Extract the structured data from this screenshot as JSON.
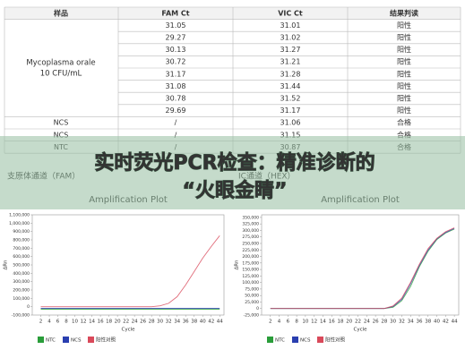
{
  "table": {
    "header": [
      "样品",
      "FAM Ct",
      "VIC Ct",
      "结果判读"
    ],
    "sample_group": [
      "Mycoplasma orale",
      "10 CFU/mL"
    ],
    "group_rows": [
      [
        "31.05",
        "31.01",
        "阳性"
      ],
      [
        "29.27",
        "31.02",
        "阳性"
      ],
      [
        "30.13",
        "31.27",
        "阳性"
      ],
      [
        "30.72",
        "31.21",
        "阳性"
      ],
      [
        "31.17",
        "31.28",
        "阳性"
      ],
      [
        "31.08",
        "31.44",
        "阳性"
      ],
      [
        "30.78",
        "31.52",
        "阳性"
      ],
      [
        "29.69",
        "31.17",
        "阳性"
      ]
    ],
    "control_rows": [
      [
        "NCS",
        "/",
        "31.06",
        "合格"
      ],
      [
        "NCS",
        "/",
        "31.15",
        "合格"
      ],
      [
        "NTC",
        "/",
        "30.87",
        "合格"
      ]
    ]
  },
  "banner": {
    "line1": "实时荧光PCR检查：精准诊断的",
    "line2": "“火眼金睛”"
  },
  "chart_data": [
    {
      "type": "line",
      "subtitle": "支原体通道（FAM）",
      "title": "Amplification Plot",
      "xlabel": "Cycle",
      "ylabel": "ΔRn",
      "x": [
        2,
        4,
        6,
        8,
        10,
        12,
        14,
        16,
        18,
        20,
        22,
        24,
        26,
        28,
        30,
        32,
        34,
        36,
        38,
        40,
        42,
        44
      ],
      "xlim": [
        0,
        45
      ],
      "xticks": [
        2,
        4,
        6,
        8,
        10,
        12,
        14,
        16,
        18,
        20,
        22,
        24,
        26,
        28,
        30,
        32,
        34,
        36,
        38,
        40,
        42,
        44
      ],
      "ylim": [
        -100000,
        1100000
      ],
      "yticks": [
        {
          "value": -100000,
          "label": "-100,000"
        },
        0,
        {
          "value": 100000,
          "label": "100,000"
        },
        {
          "value": 200000,
          "label": "200,000"
        },
        {
          "value": 300000,
          "label": "300,000"
        },
        {
          "value": 400000,
          "label": "400,000"
        },
        {
          "value": 500000,
          "label": "500,000"
        },
        {
          "value": 600000,
          "label": "600,000"
        },
        {
          "value": 700000,
          "label": "700,000"
        },
        {
          "value": 800000,
          "label": "800,000"
        },
        {
          "value": 900000,
          "label": "900,000"
        },
        {
          "value": 1000000,
          "label": "1,000,000"
        },
        {
          "value": 1100000,
          "label": "1,100,000"
        }
      ],
      "series": [
        {
          "name": "NTC",
          "color": "#2a9d3a",
          "values": [
            -30000,
            -30000,
            -30000,
            -30000,
            -30000,
            -30000,
            -30000,
            -30000,
            -30000,
            -30000,
            -30000,
            -30000,
            -30000,
            -30000,
            -30000,
            -30000,
            -30000,
            -30000,
            -30000,
            -30000,
            -30000,
            -30000
          ]
        },
        {
          "name": "NCS",
          "color": "#2a3fb0",
          "values": [
            -20000,
            -20000,
            -20000,
            -20000,
            -20000,
            -20000,
            -20000,
            -20000,
            -20000,
            -20000,
            -20000,
            -20000,
            -20000,
            -20000,
            -20000,
            -20000,
            -20000,
            -20000,
            -20000,
            -20000,
            -20000,
            -20000
          ]
        },
        {
          "name": "阳性对照",
          "color": "#d9495a",
          "values": [
            0,
            0,
            0,
            0,
            0,
            0,
            0,
            0,
            0,
            0,
            0,
            0,
            0,
            0,
            10000,
            40000,
            120000,
            260000,
            420000,
            580000,
            720000,
            850000
          ]
        }
      ]
    },
    {
      "type": "line",
      "subtitle": "IC通道（HEX）",
      "title": "Amplification Plot",
      "xlabel": "Cycle",
      "ylabel": "ΔRn",
      "x": [
        2,
        4,
        6,
        8,
        10,
        12,
        14,
        16,
        18,
        20,
        22,
        24,
        26,
        28,
        30,
        32,
        34,
        36,
        38,
        40,
        42,
        44
      ],
      "xlim": [
        0,
        45
      ],
      "xticks": [
        2,
        4,
        6,
        8,
        10,
        12,
        14,
        16,
        18,
        20,
        22,
        24,
        26,
        28,
        30,
        32,
        34,
        36,
        38,
        40,
        42,
        44
      ],
      "ylim": [
        -25000,
        360000
      ],
      "yticks": [
        {
          "value": -25000,
          "label": "-25,000"
        },
        0,
        {
          "value": 25000,
          "label": "25,000"
        },
        {
          "value": 50000,
          "label": "50,000"
        },
        {
          "value": 75000,
          "label": "75,000"
        },
        {
          "value": 100000,
          "label": "100,000"
        },
        {
          "value": 125000,
          "label": "125,000"
        },
        {
          "value": 150000,
          "label": "150,000"
        },
        {
          "value": 175000,
          "label": "175,000"
        },
        {
          "value": 200000,
          "label": "200,000"
        },
        {
          "value": 225000,
          "label": "225,000"
        },
        {
          "value": 250000,
          "label": "250,000"
        },
        {
          "value": 275000,
          "label": "275,000"
        },
        {
          "value": 300000,
          "label": "300,000"
        },
        {
          "value": 325000,
          "label": "325,000"
        },
        {
          "value": 350000,
          "label": "350,000"
        }
      ],
      "series": [
        {
          "name": "NTC",
          "color": "#2a9d3a",
          "values": [
            0,
            0,
            0,
            0,
            0,
            0,
            0,
            0,
            0,
            0,
            0,
            0,
            0,
            0,
            5000,
            30000,
            85000,
            160000,
            220000,
            265000,
            290000,
            305000
          ]
        },
        {
          "name": "NCS",
          "color": "#2a3fb0",
          "values": [
            0,
            0,
            0,
            0,
            0,
            0,
            0,
            0,
            0,
            0,
            0,
            0,
            0,
            0,
            8000,
            35000,
            95000,
            165000,
            225000,
            268000,
            292000,
            308000
          ]
        },
        {
          "name": "阳性对照",
          "color": "#d9495a",
          "values": [
            0,
            0,
            0,
            0,
            0,
            0,
            0,
            0,
            0,
            0,
            0,
            0,
            0,
            0,
            10000,
            40000,
            100000,
            170000,
            230000,
            270000,
            295000,
            310000
          ]
        }
      ]
    }
  ]
}
